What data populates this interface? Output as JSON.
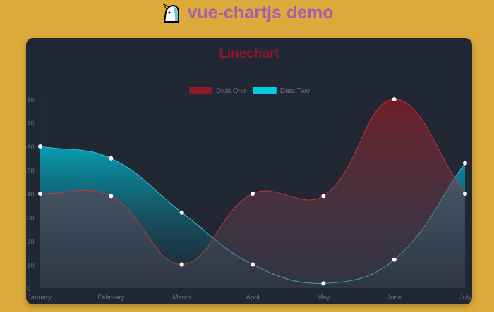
{
  "header": {
    "title": "vue-chartjs demo",
    "logo_icon": "unicorn-icon"
  },
  "card": {
    "title": "Linechart"
  },
  "chart_data": {
    "type": "line",
    "categories": [
      "January",
      "February",
      "March",
      "April",
      "May",
      "June",
      "July"
    ],
    "series": [
      {
        "name": "Data One",
        "values": [
          40,
          39,
          10,
          40,
          39,
          80,
          40
        ],
        "color": "#8e1a24"
      },
      {
        "name": "Data Two",
        "values": [
          60,
          55,
          32,
          10,
          2,
          12,
          53
        ],
        "color": "#05cbe1"
      }
    ],
    "ylim": [
      0,
      80
    ],
    "yticks": [
      "0",
      "10",
      "20",
      "30",
      "40",
      "50",
      "60",
      "70",
      "80"
    ],
    "legend": "top",
    "grid": false,
    "fill": true,
    "smooth": true
  }
}
